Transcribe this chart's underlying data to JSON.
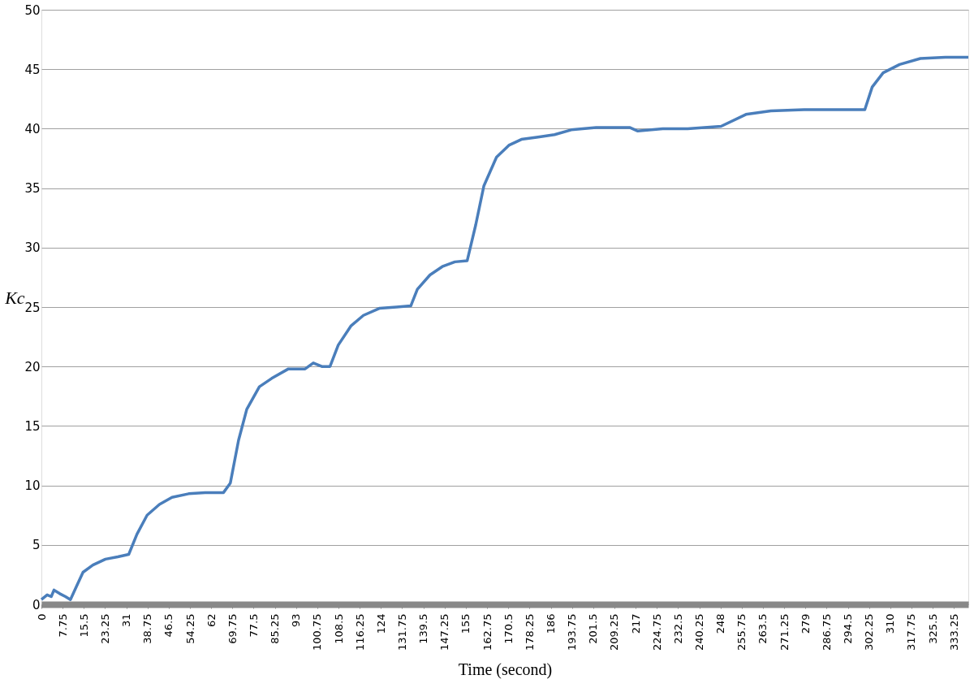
{
  "chart_data": {
    "type": "line",
    "xlabel": "Time  (second)",
    "ylabel": "Kc",
    "x": [
      0,
      2.1,
      3.6,
      4.6,
      6.7,
      8.8,
      10.6,
      12.8,
      15.2,
      18.8,
      23.4,
      27.9,
      31.9,
      34.9,
      38.6,
      43.1,
      47.7,
      53.8,
      59.8,
      66.5,
      69.0,
      72.0,
      75.0,
      79.6,
      84.1,
      90.2,
      96.3,
      99.3,
      102.4,
      105.4,
      108.4,
      113.0,
      117.6,
      123.6,
      129.7,
      134.9,
      137.3,
      141.9,
      146.4,
      151.0,
      155.5,
      158.6,
      161.6,
      166.2,
      170.7,
      175.3,
      181.4,
      187.4,
      193.5,
      202.6,
      214.8,
      217.8,
      226.9,
      236.0,
      248.2,
      257.3,
      266.4,
      278.5,
      293.7,
      300.7,
      303.4,
      307.4,
      313.4,
      321.0,
      330.1,
      338.5
    ],
    "series": [
      {
        "color": "#4a7ebb",
        "values": [
          0.4,
          0.8,
          0.65,
          1.2,
          0.9,
          0.65,
          0.4,
          1.5,
          2.7,
          3.3,
          3.8,
          4.0,
          4.2,
          5.9,
          7.5,
          8.4,
          9.0,
          9.3,
          9.4,
          9.4,
          10.2,
          13.8,
          16.4,
          18.3,
          19.0,
          19.8,
          19.8,
          20.3,
          20.0,
          20.0,
          21.8,
          23.4,
          24.3,
          24.9,
          25.0,
          25.1,
          26.5,
          27.7,
          28.4,
          28.8,
          28.9,
          31.9,
          35.2,
          37.6,
          38.6,
          39.1,
          39.3,
          39.5,
          39.9,
          40.1,
          40.1,
          39.8,
          40.0,
          40.0,
          40.2,
          41.2,
          41.5,
          41.6,
          41.6,
          41.6,
          43.5,
          44.7,
          45.4,
          45.9,
          46.0,
          46.0
        ]
      }
    ],
    "xlim": [
      0,
      338.5
    ],
    "xticks": [
      0,
      7.75,
      15.5,
      23.25,
      31,
      38.75,
      46.5,
      54.25,
      62,
      69.75,
      77.5,
      85.25,
      93,
      100.75,
      108.5,
      116.25,
      124,
      131.75,
      139.5,
      147.25,
      155,
      162.75,
      170.5,
      178.25,
      186,
      193.75,
      201.5,
      209.25,
      217,
      224.75,
      232.5,
      240.25,
      248,
      255.75,
      263.5,
      271.25,
      279,
      286.75,
      294.5,
      302.25,
      310,
      317.75,
      325.5,
      333.25
    ],
    "ylim": [
      0,
      50
    ],
    "yticks": [
      0,
      5,
      10,
      15,
      20,
      25,
      30,
      35,
      40,
      45,
      50
    ],
    "grid": "y",
    "marker": "none",
    "line_style": "solid"
  }
}
